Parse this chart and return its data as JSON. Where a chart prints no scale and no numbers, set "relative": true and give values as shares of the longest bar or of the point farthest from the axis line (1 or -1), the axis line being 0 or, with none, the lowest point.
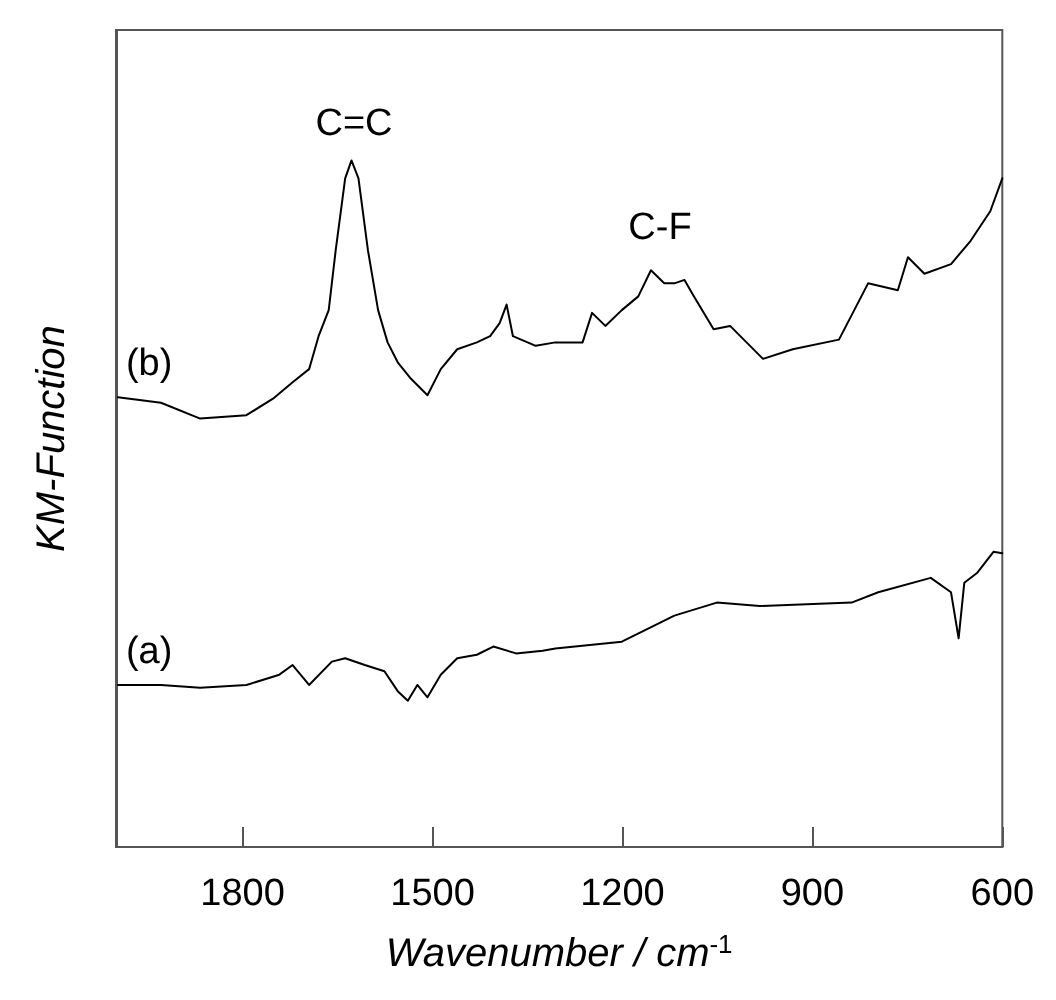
{
  "chart_data": {
    "type": "line",
    "relative": true,
    "xlabel": "Wavenumber / cm$^{-1}$",
    "ylabel": "KM-Function",
    "xlim": [
      2000,
      600
    ],
    "xticks": [
      1800,
      1500,
      1200,
      900,
      600
    ],
    "grid": false,
    "legend": false,
    "marker": "none",
    "line_style": "solid",
    "annotations": [
      "C=C",
      "C-F"
    ],
    "series": [
      {
        "name": "(b)",
        "color": "#000000",
        "x": [
          1997,
          1929,
          1867,
          1794,
          1752,
          1721,
          1695,
          1680,
          1664,
          1653,
          1638,
          1628,
          1617,
          1602,
          1586,
          1571,
          1555,
          1534,
          1508,
          1487,
          1461,
          1430,
          1409,
          1394,
          1383,
          1373,
          1337,
          1306,
          1263,
          1248,
          1227,
          1201,
          1175,
          1155,
          1134,
          1118,
          1102,
          1087,
          1056,
          1030,
          1004,
          978,
          931,
          858,
          812,
          765,
          749,
          723,
          681,
          650,
          619,
          600
        ],
        "values": [
          0.655,
          0.647,
          0.624,
          0.629,
          0.653,
          0.677,
          0.696,
          0.744,
          0.782,
          0.869,
          0.974,
          1,
          0.974,
          0.869,
          0.782,
          0.735,
          0.706,
          0.682,
          0.658,
          0.696,
          0.725,
          0.735,
          0.744,
          0.763,
          0.79,
          0.744,
          0.73,
          0.735,
          0.735,
          0.778,
          0.759,
          0.782,
          0.802,
          0.84,
          0.821,
          0.821,
          0.826,
          0.802,
          0.754,
          0.759,
          0.735,
          0.711,
          0.725,
          0.739,
          0.821,
          0.811,
          0.859,
          0.835,
          0.849,
          0.883,
          0.926,
          0.974
        ]
      },
      {
        "name": "(a)",
        "color": "#000000",
        "x": [
          1997,
          1929,
          1867,
          1794,
          1742,
          1721,
          1695,
          1659,
          1638,
          1607,
          1576,
          1555,
          1539,
          1524,
          1508,
          1487,
          1461,
          1430,
          1404,
          1368,
          1326,
          1306,
          1201,
          1118,
          1051,
          983,
          838,
          796,
          713,
          681,
          669,
          660,
          640,
          614,
          600
        ],
        "values": [
          0.236,
          0.236,
          0.232,
          0.236,
          0.251,
          0.265,
          0.236,
          0.27,
          0.275,
          0.265,
          0.256,
          0.227,
          0.213,
          0.236,
          0.218,
          0.251,
          0.275,
          0.28,
          0.292,
          0.282,
          0.286,
          0.289,
          0.299,
          0.337,
          0.356,
          0.351,
          0.356,
          0.371,
          0.392,
          0.371,
          0.304,
          0.385,
          0.399,
          0.43,
          0.428
        ]
      }
    ]
  }
}
